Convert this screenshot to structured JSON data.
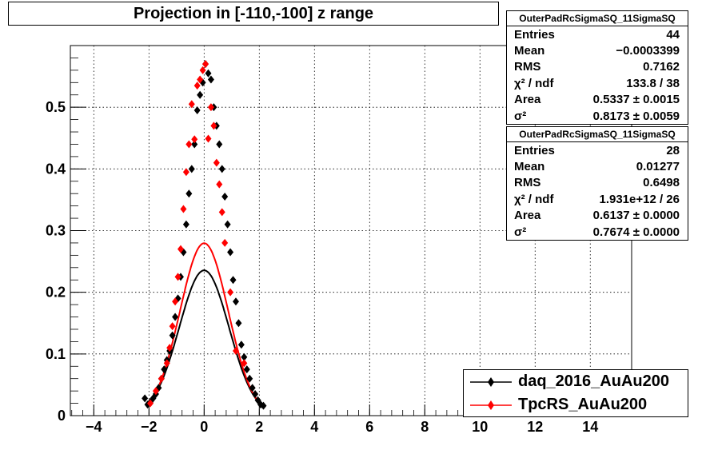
{
  "title": "Projection in [-110,-100] z range",
  "stats": [
    {
      "name": "OuterPadRcSigmaSQ_11SigmaSQ",
      "rows": [
        {
          "label": "Entries",
          "value": "44"
        },
        {
          "label": "Mean",
          "value": "−0.0003399"
        },
        {
          "label": "RMS",
          "value": "0.7162"
        },
        {
          "label": "χ² / ndf",
          "value": "133.8 / 38"
        },
        {
          "label": "Area",
          "value": "0.5337 ± 0.0015"
        },
        {
          "label": "σ²",
          "value": "0.8173 ± 0.0059"
        }
      ]
    },
    {
      "name": "OuterPadRcSigmaSQ_11SigmaSQ",
      "rows": [
        {
          "label": "Entries",
          "value": "28"
        },
        {
          "label": "Mean",
          "value": "0.01277"
        },
        {
          "label": "RMS",
          "value": "0.6498"
        },
        {
          "label": "χ² / ndf",
          "value": "1.931e+12 / 26"
        },
        {
          "label": "Area",
          "value": "0.6137 ± 0.0000"
        },
        {
          "label": "σ²",
          "value": "0.7674 ± 0.0000"
        }
      ]
    }
  ],
  "legend": [
    {
      "label": "daq_2016_AuAu200",
      "color": "#000000"
    },
    {
      "label": "TpcRS_AuAu200",
      "color": "#ff0000"
    }
  ],
  "chart_data": {
    "type": "scatter",
    "title": "Projection in [-110,-100] z range",
    "xlim": [
      -4.85,
      15.5
    ],
    "ylim": [
      0,
      0.6
    ],
    "x_ticks": [
      -4,
      -2,
      0,
      2,
      4,
      6,
      8,
      10,
      12,
      14
    ],
    "y_ticks": [
      0,
      0.1,
      0.2,
      0.3,
      0.4,
      0.5
    ],
    "grid": true,
    "legend_position": "bottom-right",
    "series": [
      {
        "name": "daq_2016_AuAu200",
        "color": "#000000",
        "points": [
          [
            -2.15,
            0.028
          ],
          [
            -2.05,
            0.018
          ],
          [
            -1.95,
            0.022
          ],
          [
            -1.85,
            0.028
          ],
          [
            -1.75,
            0.035
          ],
          [
            -1.65,
            0.045
          ],
          [
            -1.55,
            0.06
          ],
          [
            -1.45,
            0.075
          ],
          [
            -1.35,
            0.09
          ],
          [
            -1.25,
            0.105
          ],
          [
            -1.15,
            0.13
          ],
          [
            -1.05,
            0.16
          ],
          [
            -0.95,
            0.19
          ],
          [
            -0.85,
            0.225
          ],
          [
            -0.75,
            0.265
          ],
          [
            -0.65,
            0.31
          ],
          [
            -0.55,
            0.36
          ],
          [
            -0.45,
            0.4
          ],
          [
            -0.35,
            0.44
          ],
          [
            -0.25,
            0.495
          ],
          [
            -0.15,
            0.52
          ],
          [
            -0.05,
            0.54
          ],
          [
            0.05,
            0.57
          ],
          [
            0.15,
            0.555
          ],
          [
            0.25,
            0.545
          ],
          [
            0.35,
            0.5
          ],
          [
            0.45,
            0.47
          ],
          [
            0.55,
            0.44
          ],
          [
            0.65,
            0.4
          ],
          [
            0.75,
            0.355
          ],
          [
            0.85,
            0.31
          ],
          [
            0.95,
            0.265
          ],
          [
            1.05,
            0.22
          ],
          [
            1.15,
            0.185
          ],
          [
            1.25,
            0.15
          ],
          [
            1.35,
            0.115
          ],
          [
            1.45,
            0.095
          ],
          [
            1.55,
            0.075
          ],
          [
            1.65,
            0.06
          ],
          [
            1.75,
            0.045
          ],
          [
            1.85,
            0.035
          ],
          [
            1.95,
            0.025
          ],
          [
            2.05,
            0.018
          ],
          [
            2.15,
            0.016
          ]
        ],
        "fit": {
          "area": 0.5337,
          "sigma2": 0.8173
        }
      },
      {
        "name": "TpcRS_AuAu200",
        "color": "#ff0000",
        "points": [
          [
            -1.95,
            0.02
          ],
          [
            -1.75,
            0.04
          ],
          [
            -1.55,
            0.06
          ],
          [
            -1.35,
            0.085
          ],
          [
            -1.25,
            0.11
          ],
          [
            -1.15,
            0.145
          ],
          [
            -1.05,
            0.185
          ],
          [
            -0.95,
            0.225
          ],
          [
            -0.85,
            0.27
          ],
          [
            -0.75,
            0.335
          ],
          [
            -0.65,
            0.395
          ],
          [
            -0.55,
            0.44
          ],
          [
            -0.45,
            0.505
          ],
          [
            -0.35,
            0.448
          ],
          [
            -0.25,
            0.535
          ],
          [
            -0.15,
            0.545
          ],
          [
            -0.05,
            0.56
          ],
          [
            0.05,
            0.57
          ],
          [
            0.15,
            0.449
          ],
          [
            0.25,
            0.5
          ],
          [
            0.35,
            0.47
          ],
          [
            0.45,
            0.41
          ],
          [
            0.55,
            0.375
          ],
          [
            0.65,
            0.33
          ],
          [
            0.75,
            0.28
          ],
          [
            0.95,
            0.2
          ],
          [
            1.15,
            0.105
          ],
          [
            1.45,
            0.085
          ]
        ],
        "fit": {
          "area": 0.6137,
          "sigma2": 0.7674
        }
      }
    ]
  }
}
